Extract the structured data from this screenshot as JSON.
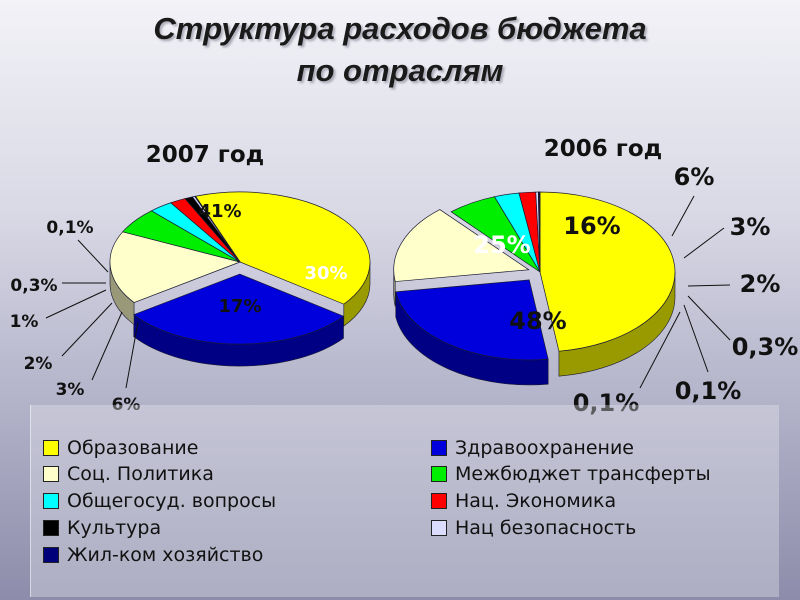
{
  "title_line1": "Структура расходов бюджета",
  "title_line2": "по отраслям",
  "chart_data": [
    {
      "type": "pie",
      "title": "2007 год",
      "slices": [
        {
          "category": "Образование",
          "value": 41,
          "label": "41%"
        },
        {
          "category": "Здравоохранение",
          "value": 30,
          "label": "30%"
        },
        {
          "category": "Соц. Политика",
          "value": 17,
          "label": "17%"
        },
        {
          "category": "Межбюджет трансферты",
          "value": 6,
          "label": "6%"
        },
        {
          "category": "Общегосуд. вопросы",
          "value": 3,
          "label": "3%"
        },
        {
          "category": "Нац. Экономика",
          "value": 2,
          "label": "2%"
        },
        {
          "category": "Культура",
          "value": 1,
          "label": "1%"
        },
        {
          "category": "Нац безопасность",
          "value": 0.3,
          "label": "0,3%"
        },
        {
          "category": "Жил-ком хозяйство",
          "value": 0.1,
          "label": "0,1%"
        }
      ]
    },
    {
      "type": "pie",
      "title": "2006 год",
      "slices": [
        {
          "category": "Образование",
          "value": 48,
          "label": "48%"
        },
        {
          "category": "Здравоохранение",
          "value": 25,
          "label": "25%"
        },
        {
          "category": "Соц. Политика",
          "value": 16,
          "label": "16%"
        },
        {
          "category": "Межбюджет трансферты",
          "value": 6,
          "label": "6%"
        },
        {
          "category": "Общегосуд. вопросы",
          "value": 3,
          "label": "3%"
        },
        {
          "category": "Нац. Экономика",
          "value": 2,
          "label": "2%"
        },
        {
          "category": "Нац безопасность",
          "value": 0.3,
          "label": "0,3%"
        },
        {
          "category": "Культура",
          "value": 0.1,
          "label": "0,1%"
        },
        {
          "category": "Жил-ком хозяйство",
          "value": 0.1,
          "label": "0,1%"
        }
      ]
    }
  ],
  "legend": [
    {
      "label": "Образование",
      "color": "#ffff00"
    },
    {
      "label": "Здравоохранение",
      "color": "#0000dd"
    },
    {
      "label": "Соц. Политика",
      "color": "#ffffcc"
    },
    {
      "label": "Межбюджет трансферты",
      "color": "#00ee00"
    },
    {
      "label": "Общегосуд. вопросы",
      "color": "#00ffff"
    },
    {
      "label": "Нац. Экономика",
      "color": "#ff0000"
    },
    {
      "label": "Культура",
      "color": "#000000"
    },
    {
      "label": "Нац безопасность",
      "color": "#dcdcff"
    },
    {
      "label": "Жил-ком хозяйство",
      "color": "#00007a"
    }
  ]
}
